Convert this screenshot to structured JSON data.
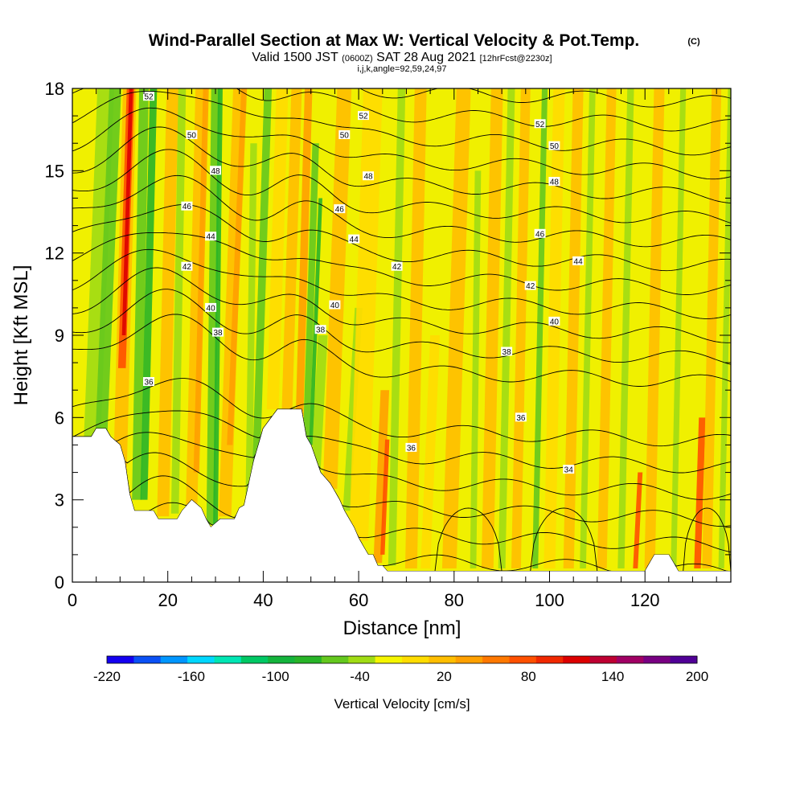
{
  "header": {
    "title": "Wind-Parallel Section at Max W: Vertical Velocity & Pot.Temp.",
    "title_tag": "(C)",
    "valid_a": "Valid 1500 JST",
    "valid_b": "(0600Z)",
    "valid_c": "SAT 28 Aug 2021",
    "valid_d": "[12hrFcst@2230z]",
    "indices": "i,j,k,angle=92,59,24,97"
  },
  "chart_data": {
    "type": "heatmap",
    "xlabel": "Distance [nm]",
    "ylabel": "Height [Kft MSL]",
    "xlim": [
      0,
      138
    ],
    "ylim": [
      0,
      18
    ],
    "x_ticks": [
      "0",
      "20",
      "40",
      "60",
      "80",
      "100",
      "120"
    ],
    "y_ticks": [
      "0",
      "3",
      "6",
      "9",
      "12",
      "15",
      "18"
    ],
    "colorbar": {
      "label": "Vertical Velocity [cm/s]",
      "tick_labels": [
        "-220",
        "-160",
        "-100",
        "-40",
        "20",
        "80",
        "140",
        "200"
      ],
      "colors": [
        "#1400f0",
        "#0a50f5",
        "#0096ff",
        "#00d7ff",
        "#00e6b4",
        "#00c864",
        "#14b43c",
        "#28b428",
        "#64c81e",
        "#a0dc14",
        "#f5f500",
        "#ffdc00",
        "#ffbe00",
        "#ffa000",
        "#ff7800",
        "#ff5000",
        "#f02800",
        "#dc0000",
        "#be0032",
        "#a00064",
        "#780082",
        "#500096"
      ]
    },
    "terrain_surface": [
      [
        0,
        5.3
      ],
      [
        4,
        5.3
      ],
      [
        5,
        5.6
      ],
      [
        7,
        5.6
      ],
      [
        8,
        5.3
      ],
      [
        10,
        5.0
      ],
      [
        11,
        4.4
      ],
      [
        12,
        3.2
      ],
      [
        13,
        2.6
      ],
      [
        17,
        2.6
      ],
      [
        18,
        2.3
      ],
      [
        22,
        2.3
      ],
      [
        23,
        2.6
      ],
      [
        25,
        3.0
      ],
      [
        27,
        2.7
      ],
      [
        28,
        2.3
      ],
      [
        29,
        2.0
      ],
      [
        31,
        2.3
      ],
      [
        34,
        2.3
      ],
      [
        35,
        2.7
      ],
      [
        36,
        2.8
      ],
      [
        37,
        3.6
      ],
      [
        38,
        4.4
      ],
      [
        39,
        5.0
      ],
      [
        40,
        5.6
      ],
      [
        43,
        6.3
      ],
      [
        48,
        6.3
      ],
      [
        49,
        5.3
      ],
      [
        50,
        5.0
      ],
      [
        52,
        4.0
      ],
      [
        54,
        3.6
      ],
      [
        55,
        3.3
      ],
      [
        56,
        3.0
      ],
      [
        57,
        2.6
      ],
      [
        58,
        2.3
      ],
      [
        59,
        2.0
      ],
      [
        60,
        1.6
      ],
      [
        61,
        1.3
      ],
      [
        62,
        1.0
      ],
      [
        63,
        1.0
      ],
      [
        64,
        0.6
      ],
      [
        65,
        0.6
      ],
      [
        66,
        0.4
      ],
      [
        90,
        0.4
      ],
      [
        120,
        0.4
      ],
      [
        121,
        0.7
      ],
      [
        122,
        1.0
      ],
      [
        125,
        1.0
      ],
      [
        126,
        0.7
      ],
      [
        127,
        0.4
      ],
      [
        138,
        0.4
      ]
    ],
    "theta_labels": [
      {
        "x": 16,
        "y": 7.3,
        "value": "36"
      },
      {
        "x": 30.5,
        "y": 9.1,
        "value": "38"
      },
      {
        "x": 29,
        "y": 10.0,
        "value": "40"
      },
      {
        "x": 24,
        "y": 11.5,
        "value": "42"
      },
      {
        "x": 29,
        "y": 12.6,
        "value": "44"
      },
      {
        "x": 24,
        "y": 13.7,
        "value": "46"
      },
      {
        "x": 30,
        "y": 15.0,
        "value": "48"
      },
      {
        "x": 25,
        "y": 16.3,
        "value": "50"
      },
      {
        "x": 16,
        "y": 17.7,
        "value": "52"
      },
      {
        "x": 52,
        "y": 9.2,
        "value": "38"
      },
      {
        "x": 55,
        "y": 10.1,
        "value": "40"
      },
      {
        "x": 68,
        "y": 11.5,
        "value": "42"
      },
      {
        "x": 59,
        "y": 12.5,
        "value": "44"
      },
      {
        "x": 56,
        "y": 13.6,
        "value": "46"
      },
      {
        "x": 62,
        "y": 14.8,
        "value": "48"
      },
      {
        "x": 57,
        "y": 16.3,
        "value": "50"
      },
      {
        "x": 61,
        "y": 17.0,
        "value": "52"
      },
      {
        "x": 71,
        "y": 4.9,
        "value": "36"
      },
      {
        "x": 91,
        "y": 8.4,
        "value": "38"
      },
      {
        "x": 94,
        "y": 6.0,
        "value": "36"
      },
      {
        "x": 104,
        "y": 4.1,
        "value": "34"
      },
      {
        "x": 101,
        "y": 9.5,
        "value": "40"
      },
      {
        "x": 96,
        "y": 10.8,
        "value": "42"
      },
      {
        "x": 106,
        "y": 11.7,
        "value": "44"
      },
      {
        "x": 98,
        "y": 12.7,
        "value": "46"
      },
      {
        "x": 101,
        "y": 14.6,
        "value": "48"
      },
      {
        "x": 101,
        "y": 15.9,
        "value": "50"
      },
      {
        "x": 98,
        "y": 16.7,
        "value": "52"
      }
    ]
  }
}
